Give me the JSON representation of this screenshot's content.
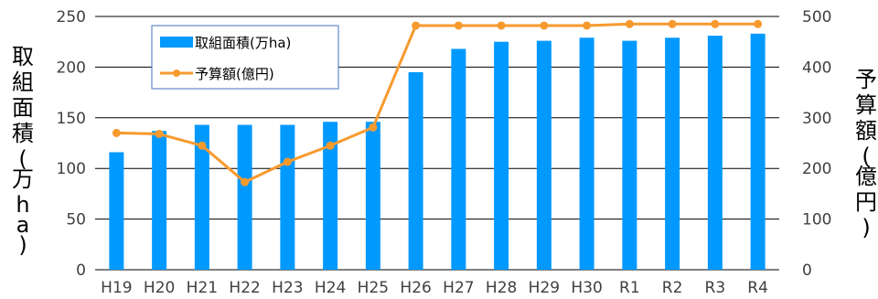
{
  "chart_data": {
    "type": "bar+line",
    "categories": [
      "H19",
      "H20",
      "H21",
      "H22",
      "H23",
      "H24",
      "H25",
      "H26",
      "H27",
      "H28",
      "H29",
      "H30",
      "R1",
      "R2",
      "R3",
      "R4"
    ],
    "series": [
      {
        "name": "取組面積(万ha)",
        "kind": "bar",
        "axis": "left",
        "color": "#0099ff",
        "values": [
          116,
          137,
          143,
          143,
          143,
          146,
          146,
          195,
          218,
          225,
          226,
          229,
          226,
          229,
          231,
          233
        ]
      },
      {
        "name": "予算額(億円)",
        "kind": "line",
        "axis": "right",
        "color": "#f79a2e",
        "values": [
          270,
          268,
          245,
          173,
          213,
          245,
          281,
          482,
          482,
          482,
          482,
          482,
          485,
          485,
          485,
          485
        ]
      }
    ],
    "y_left": {
      "label_chars": [
        "取",
        "組",
        "面",
        "積",
        "(",
        "万",
        "h",
        "a",
        ")"
      ],
      "ylim": [
        0,
        250
      ],
      "ticks": [
        "0",
        "50",
        "100",
        "150",
        "200",
        "250"
      ]
    },
    "y_right": {
      "label_chars": [
        "予",
        "算",
        "額",
        "(",
        "億",
        "円",
        ")"
      ],
      "ylim": [
        0,
        500
      ],
      "ticks": [
        "0",
        "100",
        "200",
        "300",
        "400",
        "500"
      ]
    },
    "grid": true,
    "legend_position": "top-left inside"
  }
}
